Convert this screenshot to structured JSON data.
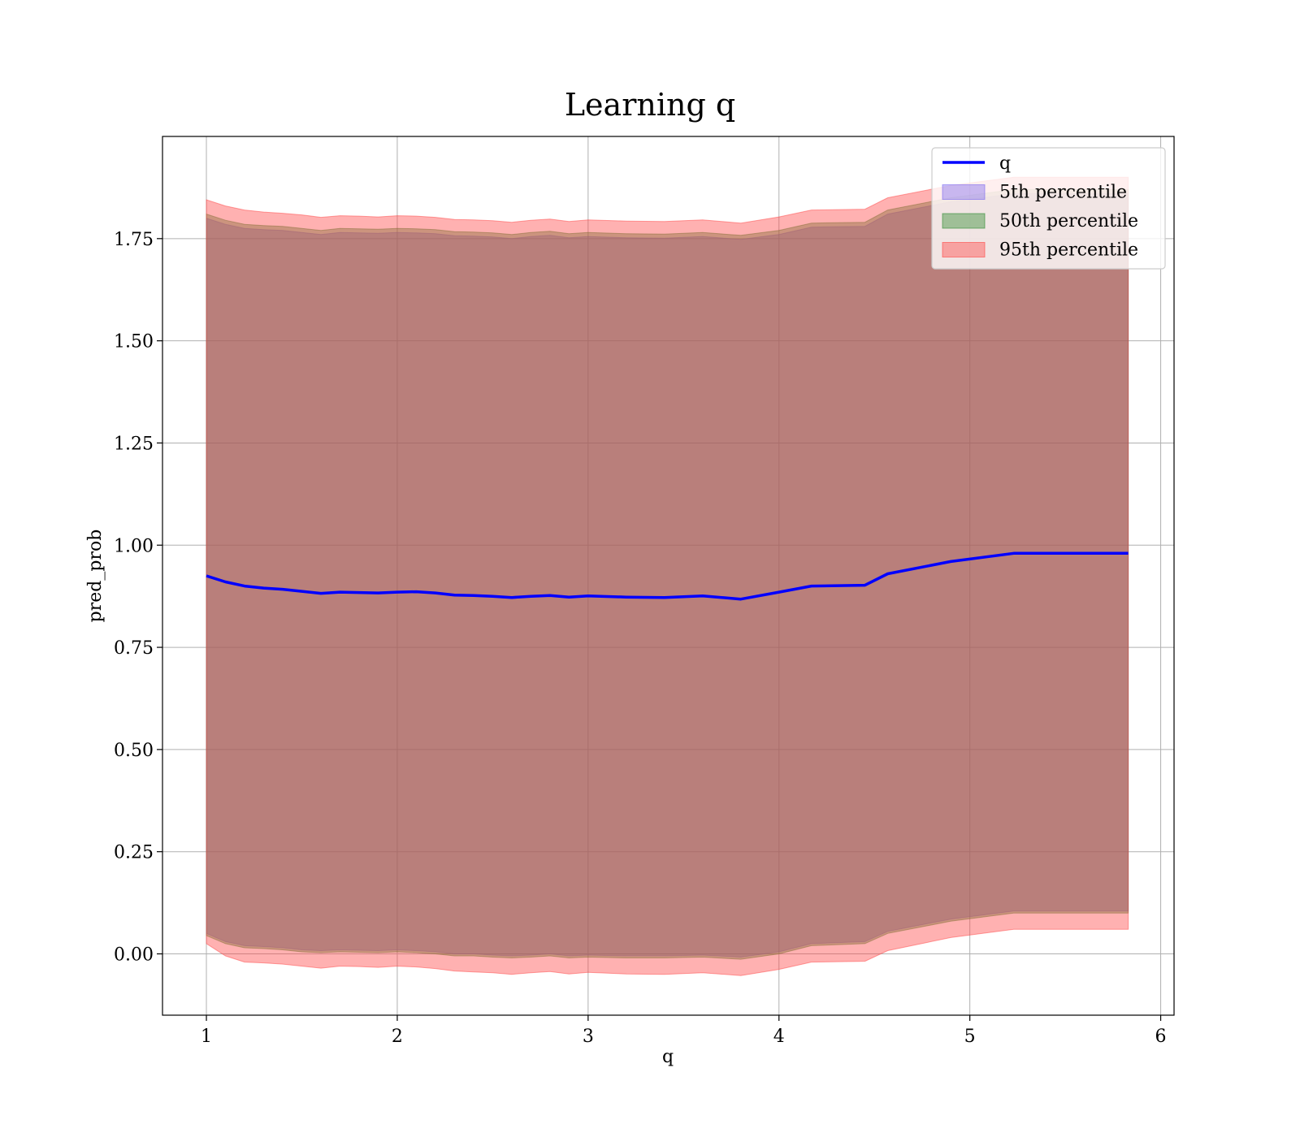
{
  "chart_data": {
    "type": "area",
    "title": "Learning q",
    "xlabel": "q",
    "ylabel": "pred_prob",
    "xlim": [
      0.77,
      6.07
    ],
    "ylim": [
      -0.15,
      2.0
    ],
    "xticks": [
      1,
      2,
      3,
      4,
      5,
      6
    ],
    "xtick_labels": [
      "1",
      "2",
      "3",
      "4",
      "5",
      "6"
    ],
    "yticks": [
      0.0,
      0.25,
      0.5,
      0.75,
      1.0,
      1.25,
      1.5,
      1.75
    ],
    "ytick_labels": [
      "0.00",
      "0.25",
      "0.50",
      "0.75",
      "1.00",
      "1.25",
      "1.50",
      "1.75"
    ],
    "grid": true,
    "legend_position": "top-right",
    "x": [
      1.0,
      1.1,
      1.2,
      1.3,
      1.4,
      1.5,
      1.6,
      1.7,
      1.8,
      1.9,
      2.0,
      2.1,
      2.2,
      2.3,
      2.4,
      2.5,
      2.6,
      2.7,
      2.8,
      2.9,
      3.0,
      3.2,
      3.4,
      3.6,
      3.8,
      4.0,
      4.17,
      4.45,
      4.57,
      4.9,
      5.23,
      5.83
    ],
    "series": [
      {
        "name": "q",
        "kind": "line",
        "color": "#0000ff",
        "values": [
          0.925,
          0.91,
          0.9,
          0.895,
          0.892,
          0.887,
          0.882,
          0.885,
          0.884,
          0.883,
          0.885,
          0.886,
          0.883,
          0.878,
          0.877,
          0.875,
          0.872,
          0.875,
          0.877,
          0.873,
          0.876,
          0.873,
          0.872,
          0.876,
          0.868,
          0.885,
          0.9,
          0.902,
          0.93,
          0.96,
          0.98,
          0.98
        ]
      },
      {
        "name": "5th percentile",
        "kind": "band",
        "color": "#7b68ee",
        "lower": [
          0.05,
          0.03,
          0.02,
          0.018,
          0.015,
          0.01,
          0.008,
          0.01,
          0.009,
          0.008,
          0.01,
          0.008,
          0.005,
          0.0,
          0.0,
          -0.003,
          -0.005,
          -0.003,
          0.0,
          -0.005,
          -0.003,
          -0.005,
          -0.005,
          -0.003,
          -0.008,
          0.005,
          0.025,
          0.03,
          0.055,
          0.085,
          0.105,
          0.105
        ],
        "upper": [
          1.8,
          1.785,
          1.775,
          1.772,
          1.77,
          1.765,
          1.76,
          1.765,
          1.764,
          1.763,
          1.765,
          1.764,
          1.762,
          1.757,
          1.756,
          1.754,
          1.75,
          1.755,
          1.758,
          1.752,
          1.755,
          1.752,
          1.751,
          1.755,
          1.748,
          1.76,
          1.778,
          1.78,
          1.81,
          1.84,
          1.86,
          1.86
        ]
      },
      {
        "name": "50th percentile",
        "kind": "band",
        "color": "#2e8b2e",
        "lower": [
          0.045,
          0.025,
          0.015,
          0.013,
          0.01,
          0.005,
          0.003,
          0.005,
          0.004,
          0.003,
          0.005,
          0.003,
          0.0,
          -0.005,
          -0.005,
          -0.008,
          -0.01,
          -0.008,
          -0.005,
          -0.01,
          -0.008,
          -0.01,
          -0.01,
          -0.008,
          -0.013,
          0.0,
          0.02,
          0.025,
          0.05,
          0.08,
          0.1,
          0.1
        ],
        "upper": [
          1.81,
          1.795,
          1.785,
          1.782,
          1.78,
          1.775,
          1.77,
          1.775,
          1.774,
          1.773,
          1.775,
          1.774,
          1.772,
          1.767,
          1.766,
          1.764,
          1.76,
          1.765,
          1.768,
          1.762,
          1.765,
          1.762,
          1.761,
          1.765,
          1.758,
          1.77,
          1.788,
          1.79,
          1.82,
          1.85,
          1.87,
          1.87
        ]
      },
      {
        "name": "95th percentile",
        "kind": "band",
        "color": "#ff4444",
        "lower": [
          0.025,
          -0.005,
          -0.02,
          -0.022,
          -0.025,
          -0.03,
          -0.035,
          -0.03,
          -0.031,
          -0.033,
          -0.03,
          -0.032,
          -0.036,
          -0.042,
          -0.044,
          -0.046,
          -0.05,
          -0.046,
          -0.043,
          -0.049,
          -0.045,
          -0.049,
          -0.05,
          -0.046,
          -0.053,
          -0.038,
          -0.02,
          -0.018,
          0.008,
          0.04,
          0.06,
          0.06
        ],
        "upper": [
          1.845,
          1.83,
          1.82,
          1.815,
          1.812,
          1.808,
          1.802,
          1.806,
          1.805,
          1.803,
          1.806,
          1.805,
          1.802,
          1.797,
          1.796,
          1.794,
          1.79,
          1.795,
          1.798,
          1.792,
          1.796,
          1.793,
          1.792,
          1.796,
          1.788,
          1.803,
          1.82,
          1.822,
          1.85,
          1.88,
          1.9,
          1.9
        ]
      }
    ]
  }
}
